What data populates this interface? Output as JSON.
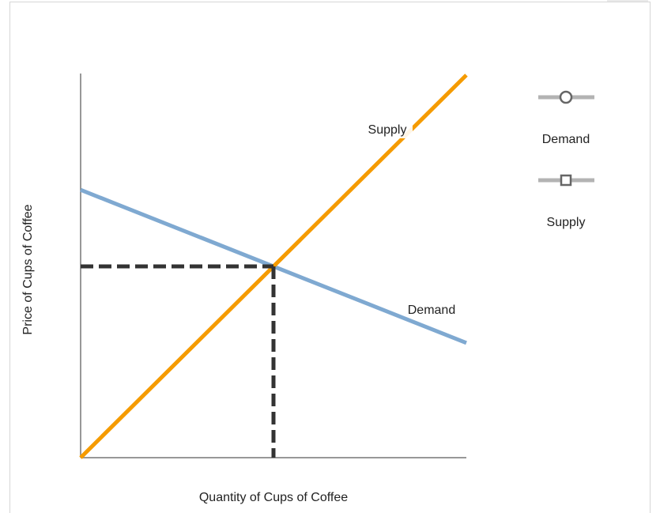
{
  "chart_data": {
    "type": "line",
    "x_label": "Quantity of Cups of Coffee",
    "y_label": "Price of Cups of Coffee",
    "x": [
      0,
      100
    ],
    "series": [
      {
        "name": "Demand",
        "color": "#7fa9d1",
        "marker": "circle",
        "values": [
          70,
          30
        ]
      },
      {
        "name": "Supply",
        "color": "#f59b00",
        "marker": "square",
        "values": [
          0,
          100
        ]
      }
    ],
    "equilibrium": {
      "x": 50,
      "y": 50
    },
    "xlim": [
      0,
      100
    ],
    "ylim": [
      0,
      100
    ]
  }
}
